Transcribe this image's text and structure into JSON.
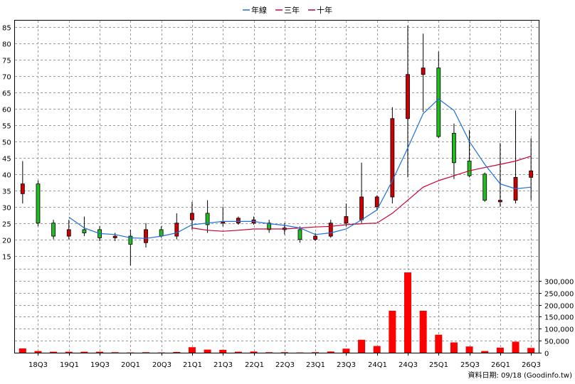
{
  "chart_data": {
    "type": "candlestick",
    "legend": [
      {
        "name": "年線",
        "color": "#1e6fd9"
      },
      {
        "name": "三年",
        "color": "#e0003c"
      },
      {
        "name": "十年",
        "color": "#b00050"
      }
    ],
    "x_labels": [
      "18Q3",
      "19Q1",
      "19Q3",
      "20Q1",
      "20Q3",
      "21Q1",
      "21Q3",
      "22Q1",
      "22Q3",
      "23Q1",
      "23Q3",
      "24Q1",
      "24Q3",
      "25Q1",
      "25Q3",
      "26Q1",
      "26Q3"
    ],
    "price_axis": {
      "ticks": [
        15,
        20,
        25,
        30,
        35,
        40,
        45,
        50,
        55,
        60,
        65,
        70,
        75,
        80,
        85
      ],
      "range": [
        11,
        87
      ]
    },
    "volume_axis": {
      "ticks": [
        "0",
        "50,000",
        "100,000",
        "150,000",
        "200,000",
        "250,000",
        "300,000"
      ],
      "range": [
        0,
        350000
      ]
    },
    "colors": {
      "up": "#cc0000",
      "down": "#22bb22",
      "volume": "#ff0000",
      "year_line": "#1e6fd9",
      "three_year_line": "#cc0033"
    },
    "candles": [
      {
        "q": "18Q2",
        "open": 34,
        "close": 37,
        "high": 44,
        "low": 31
      },
      {
        "q": "18Q3",
        "open": 37,
        "close": 25,
        "high": 38,
        "low": 24
      },
      {
        "q": "18Q4",
        "open": 25,
        "close": 21,
        "high": 26,
        "low": 20
      },
      {
        "q": "19Q1",
        "open": 21,
        "close": 23,
        "high": 26,
        "low": 20
      },
      {
        "q": "19Q2",
        "open": 23,
        "close": 22,
        "high": 27,
        "low": 21
      },
      {
        "q": "19Q3",
        "open": 23,
        "close": 20.5,
        "high": 24,
        "low": 19.5
      },
      {
        "q": "19Q4",
        "open": 20.5,
        "close": 21,
        "high": 22,
        "low": 19.5
      },
      {
        "q": "20Q1",
        "open": 21,
        "close": 18.5,
        "high": 23,
        "low": 12
      },
      {
        "q": "20Q2",
        "open": 19,
        "close": 23,
        "high": 25,
        "low": 17.5
      },
      {
        "q": "20Q3",
        "open": 23,
        "close": 21,
        "high": 24,
        "low": 20.5
      },
      {
        "q": "20Q4",
        "open": 21,
        "close": 25,
        "high": 28,
        "low": 20
      },
      {
        "q": "21Q1",
        "open": 26,
        "close": 28,
        "high": 31.5,
        "low": 23
      },
      {
        "q": "21Q2",
        "open": 28,
        "close": 24.5,
        "high": 32,
        "low": 22
      },
      {
        "q": "21Q3",
        "open": 25,
        "close": 25.5,
        "high": 30,
        "low": 24
      },
      {
        "q": "21Q4",
        "open": 25,
        "close": 26.5,
        "high": 27,
        "low": 24.5
      },
      {
        "q": "22Q1",
        "open": 25,
        "close": 26,
        "high": 27,
        "low": 24.5
      },
      {
        "q": "22Q2",
        "open": 25,
        "close": 23,
        "high": 26,
        "low": 22
      },
      {
        "q": "22Q3",
        "open": 23.5,
        "close": 23,
        "high": 25,
        "low": 21.5
      },
      {
        "q": "22Q4",
        "open": 23,
        "close": 20,
        "high": 24,
        "low": 19
      },
      {
        "q": "23Q1",
        "open": 20,
        "close": 21,
        "high": 22,
        "low": 19.5
      },
      {
        "q": "23Q2",
        "open": 21,
        "close": 25,
        "high": 26,
        "low": 20.5
      },
      {
        "q": "23Q3",
        "open": 25,
        "close": 27,
        "high": 31,
        "low": 24
      },
      {
        "q": "23Q4",
        "open": 26,
        "close": 33,
        "high": 43.5,
        "low": 25
      },
      {
        "q": "24Q1",
        "open": 30,
        "close": 33,
        "high": 33.5,
        "low": 29
      },
      {
        "q": "24Q2",
        "open": 33,
        "close": 57,
        "high": 60.5,
        "low": 31
      },
      {
        "q": "24Q3",
        "open": 57,
        "close": 70.5,
        "high": 85.5,
        "low": 39
      },
      {
        "q": "24Q4",
        "open": 70.5,
        "close": 72.5,
        "high": 83,
        "low": 59
      },
      {
        "q": "25Q1",
        "open": 72.5,
        "close": 51.5,
        "high": 77.5,
        "low": 51
      },
      {
        "q": "25Q2",
        "open": 52.5,
        "close": 43.5,
        "high": 55.5,
        "low": 38.5
      },
      {
        "q": "25Q3",
        "open": 44,
        "close": 39.5,
        "high": 53.5,
        "low": 39
      },
      {
        "q": "25Q4",
        "open": 40,
        "close": 32,
        "high": 40.5,
        "low": 31.5
      },
      {
        "q": "26Q1",
        "open": 31.5,
        "close": 32,
        "high": 49.5,
        "low": 30
      },
      {
        "q": "26Q2",
        "open": 32,
        "close": 39,
        "high": 59.5,
        "low": 31
      },
      {
        "q": "26Q3",
        "open": 39,
        "close": 41,
        "high": 51,
        "low": 32
      }
    ],
    "volumes": [
      18000,
      7000,
      4000,
      4000,
      4000,
      4000,
      2000,
      1000,
      2000,
      1000,
      3000,
      23000,
      13000,
      12000,
      4000,
      5000,
      2000,
      2000,
      1000,
      2000,
      5000,
      17000,
      54000,
      28000,
      175000,
      335000,
      175000,
      75000,
      43000,
      26000,
      7000,
      21000,
      46000,
      20000
    ],
    "year_line": [
      null,
      null,
      null,
      26.8,
      23.5,
      21.8,
      21.5,
      20.5,
      20.3,
      21,
      22,
      24.5,
      25,
      25.5,
      25.5,
      25.5,
      24.8,
      24.3,
      23.5,
      21.5,
      22,
      23.2,
      26,
      29,
      38,
      48,
      58.5,
      63,
      59.5,
      50,
      43,
      37,
      35.5,
      36
    ],
    "three_year_line": [
      null,
      null,
      null,
      null,
      null,
      null,
      null,
      null,
      null,
      null,
      null,
      23.5,
      22.8,
      22.5,
      22.8,
      23.2,
      23.2,
      23.2,
      23.5,
      23.8,
      24,
      24.5,
      24.8,
      25,
      28,
      32,
      36,
      38,
      39.5,
      41,
      42,
      43,
      44,
      45.5
    ]
  },
  "footer": {
    "source": "資料日期: 09/18  (Goodinfo.tw)"
  }
}
